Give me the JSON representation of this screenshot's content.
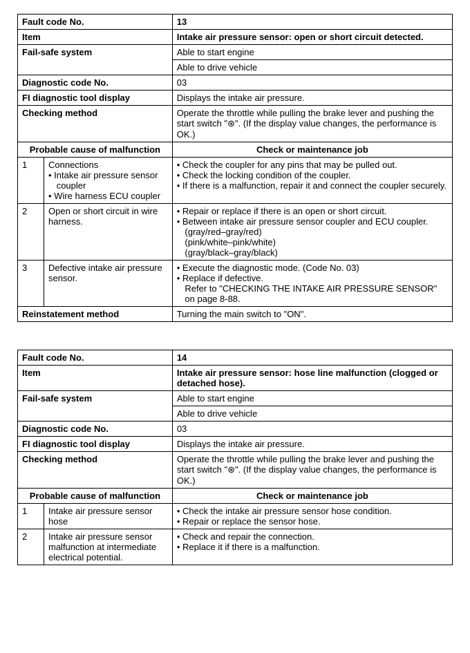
{
  "table1": {
    "faultCode": {
      "label": "Fault code No.",
      "value": "13"
    },
    "item": {
      "label": "Item",
      "value": "Intake air pressure sensor: open or short circuit detected."
    },
    "failSafe": {
      "label": "Fail-safe system",
      "v1": "Able to start engine",
      "v2": "Able to drive vehicle"
    },
    "diagCode": {
      "label": "Diagnostic code No.",
      "value": "03"
    },
    "fiDisplay": {
      "label": "FI diagnostic tool display",
      "value": "Displays the intake air pressure."
    },
    "checking": {
      "label": "Checking method",
      "value": "Operate the throttle while pulling the brake lever and pushing the start switch \"⊛\". (If the display value changes, the performance is OK.)"
    },
    "causeHeader": "Probable cause of malfunction",
    "jobHeader": "Check or maintenance job",
    "rows": [
      {
        "n": "1",
        "cause": "Connections",
        "causeBullets": [
          "Intake air pressure sensor coupler",
          "Wire harness ECU coupler"
        ],
        "job": [
          "Check the coupler for any pins that may be pulled out.",
          "Check the locking condition of the coupler.",
          "If there is a malfunction, repair it and connect the coupler securely."
        ]
      },
      {
        "n": "2",
        "cause": "Open or short circuit in wire harness.",
        "job": [
          "Repair or replace if there is an open or short circuit.",
          "Between intake air pressure sensor coupler and ECU coupler."
        ],
        "jobExtra": [
          "(gray/red–gray/red)",
          "(pink/white–pink/white)",
          "(gray/black–gray/black)"
        ]
      },
      {
        "n": "3",
        "cause": "Defective intake air pressure sensor.",
        "job": [
          "Execute the diagnostic mode. (Code No. 03)",
          "Replace if defective."
        ],
        "jobExtra": [
          "Refer to \"CHECKING THE INTAKE AIR PRESSURE SENSOR\" on page 8-88."
        ]
      }
    ],
    "reinstate": {
      "label": "Reinstatement method",
      "value": "Turning the main switch to \"ON\"."
    }
  },
  "table2": {
    "faultCode": {
      "label": "Fault code No.",
      "value": "14"
    },
    "item": {
      "label": "Item",
      "value": "Intake air pressure sensor: hose line malfunction (clogged or detached hose)."
    },
    "failSafe": {
      "label": "Fail-safe system",
      "v1": "Able to start engine",
      "v2": "Able to drive vehicle"
    },
    "diagCode": {
      "label": "Diagnostic code No.",
      "value": "03"
    },
    "fiDisplay": {
      "label": "FI diagnostic tool display",
      "value": "Displays the intake air pressure."
    },
    "checking": {
      "label": "Checking method",
      "value": "Operate the throttle while pulling the brake lever and pushing the start switch \"⊛\". (If the display value changes, the performance is OK.)"
    },
    "causeHeader": "Probable cause of malfunction",
    "jobHeader": "Check or maintenance job",
    "rows": [
      {
        "n": "1",
        "cause": "Intake air pressure sensor hose",
        "job": [
          "Check the intake air pressure sensor hose condition.",
          "Repair or replace the sensor hose."
        ]
      },
      {
        "n": "2",
        "cause": "Intake air pressure sensor malfunction at intermediate electrical potential.",
        "job": [
          "Check and repair the connection.",
          "Replace it if there is a malfunction."
        ]
      }
    ]
  }
}
